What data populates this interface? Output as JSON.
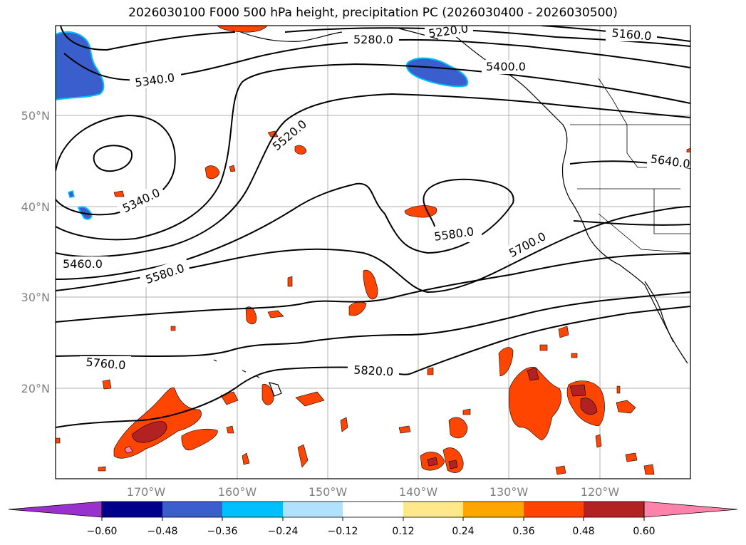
{
  "title": "2026030100 F000 500 hPa height, precipitation PC (2026030400 - 2026030500)",
  "lat_ticks": [
    "50°N",
    "40°N",
    "30°N",
    "20°N"
  ],
  "lon_ticks": [
    "170°W",
    "160°W",
    "150°W",
    "140°W",
    "130°W",
    "120°W"
  ],
  "contour_labels": [
    "5280.0",
    "5220.0",
    "5160.0",
    "5400.0",
    "5340.0",
    "5520.0",
    "5340.0",
    "5640.0",
    "5580.0",
    "5700.0",
    "5460.0",
    "5580.0",
    "5760.0",
    "5820.0"
  ],
  "colorbar": {
    "ticks": [
      "−0.60",
      "−0.48",
      "−0.36",
      "−0.24",
      "−0.12",
      "0.12",
      "0.24",
      "0.36",
      "0.48",
      "0.60"
    ],
    "colors": [
      "#9932cc",
      "#00008b",
      "#3a5fcd",
      "#00bfff",
      "#b0e2ff",
      "#ffffff",
      "#ffe88a",
      "#ffa500",
      "#ff4500",
      "#b22222",
      "#ff82ab"
    ]
  },
  "colors": {
    "ocean": "#ffffff",
    "contour": "#000000",
    "grid": "#b0b0b0",
    "tick_text": "#808080"
  }
}
